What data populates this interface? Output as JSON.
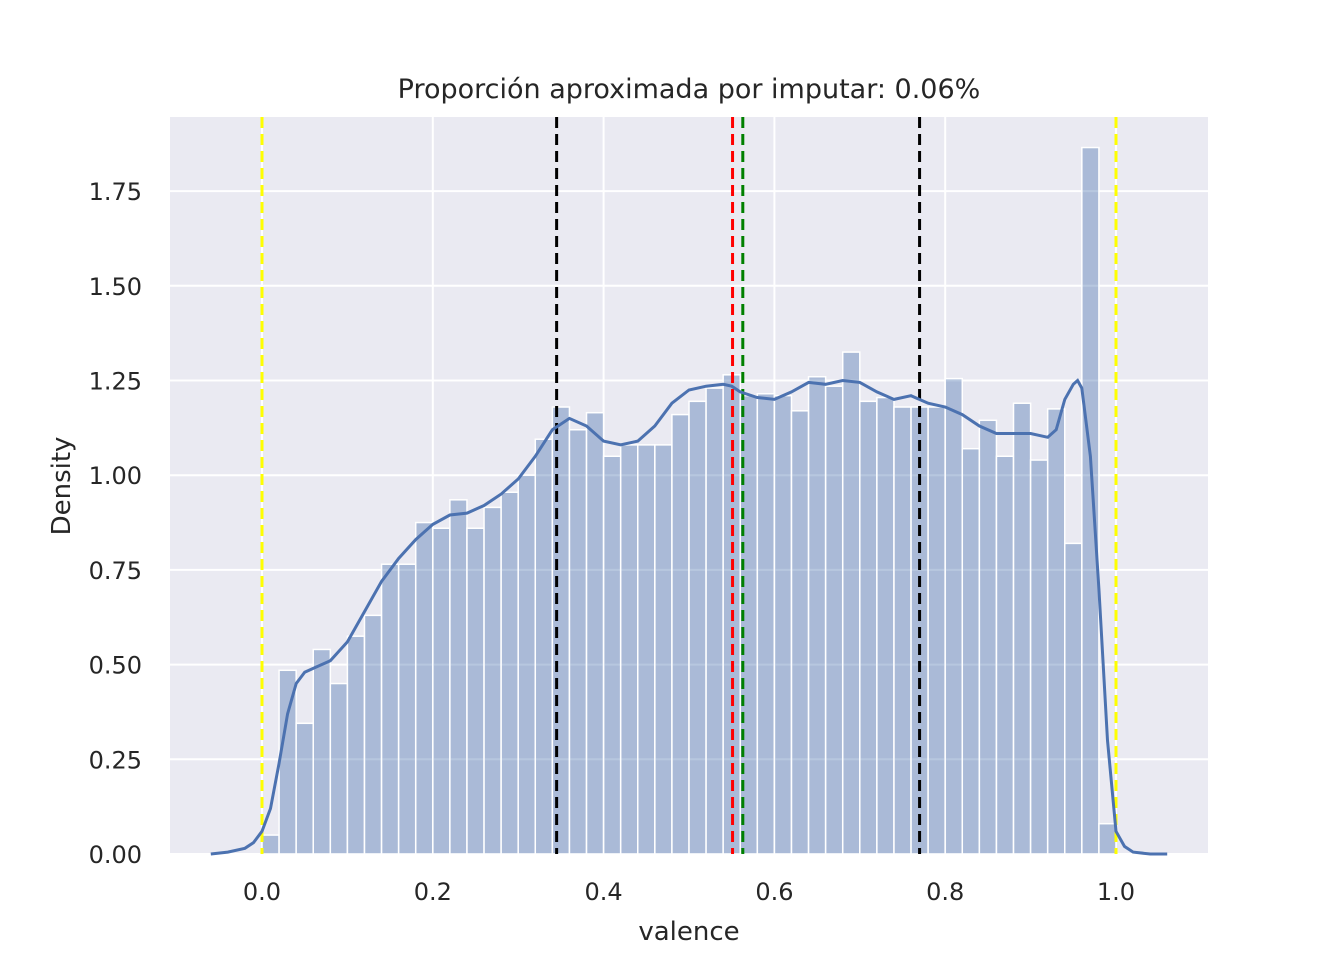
{
  "chart_data": {
    "type": "bar",
    "title": "Proporción aproximada por imputar: 0.06%",
    "xlabel": "valence",
    "ylabel": "Density",
    "xlim": [
      -0.12,
      1.11
    ],
    "ylim": [
      0,
      1.95
    ],
    "xticks": [
      0.0,
      0.2,
      0.4,
      0.6,
      0.8,
      1.0
    ],
    "xtick_labels": [
      "0.0",
      "0.2",
      "0.4",
      "0.6",
      "0.8",
      "1.0"
    ],
    "yticks": [
      0.0,
      0.25,
      0.5,
      0.75,
      1.0,
      1.25,
      1.5,
      1.75
    ],
    "ytick_labels": [
      "0.00",
      "0.25",
      "0.50",
      "0.75",
      "1.00",
      "1.25",
      "1.50",
      "1.75"
    ],
    "grid": true,
    "histogram": {
      "bin_start": 0.0,
      "bin_width": 0.02,
      "color": "#4c72b0",
      "densities": [
        0.05,
        0.485,
        0.345,
        0.54,
        0.45,
        0.575,
        0.63,
        0.765,
        0.765,
        0.875,
        0.86,
        0.935,
        0.86,
        0.915,
        0.955,
        1.0,
        1.095,
        1.18,
        1.12,
        1.165,
        1.05,
        1.08,
        1.08,
        1.08,
        1.16,
        1.195,
        1.23,
        1.265,
        1.21,
        1.215,
        1.21,
        1.17,
        1.26,
        1.235,
        1.325,
        1.195,
        1.205,
        1.18,
        1.18,
        1.18,
        1.255,
        1.07,
        1.145,
        1.05,
        1.19,
        1.04,
        1.175,
        0.82,
        1.865,
        0.08
      ]
    },
    "kde": {
      "color": "#4c72b0",
      "x": [
        -0.06,
        -0.04,
        -0.02,
        -0.01,
        0.0,
        0.01,
        0.02,
        0.03,
        0.04,
        0.05,
        0.06,
        0.08,
        0.1,
        0.12,
        0.14,
        0.16,
        0.18,
        0.2,
        0.22,
        0.24,
        0.26,
        0.28,
        0.3,
        0.32,
        0.34,
        0.36,
        0.38,
        0.4,
        0.42,
        0.44,
        0.46,
        0.48,
        0.5,
        0.52,
        0.54,
        0.55,
        0.56,
        0.58,
        0.6,
        0.62,
        0.64,
        0.66,
        0.68,
        0.7,
        0.72,
        0.74,
        0.76,
        0.78,
        0.8,
        0.82,
        0.84,
        0.86,
        0.88,
        0.9,
        0.92,
        0.93,
        0.94,
        0.95,
        0.955,
        0.96,
        0.97,
        0.98,
        0.99,
        1.0,
        1.01,
        1.02,
        1.04,
        1.06
      ],
      "y": [
        0.0,
        0.005,
        0.015,
        0.03,
        0.06,
        0.12,
        0.24,
        0.37,
        0.45,
        0.48,
        0.49,
        0.51,
        0.56,
        0.64,
        0.72,
        0.78,
        0.83,
        0.87,
        0.895,
        0.9,
        0.92,
        0.95,
        0.99,
        1.05,
        1.12,
        1.15,
        1.13,
        1.09,
        1.08,
        1.09,
        1.13,
        1.19,
        1.225,
        1.235,
        1.24,
        1.235,
        1.22,
        1.205,
        1.2,
        1.22,
        1.245,
        1.24,
        1.25,
        1.245,
        1.22,
        1.2,
        1.21,
        1.19,
        1.18,
        1.16,
        1.13,
        1.11,
        1.11,
        1.11,
        1.1,
        1.12,
        1.2,
        1.24,
        1.25,
        1.23,
        1.05,
        0.7,
        0.3,
        0.06,
        0.02,
        0.005,
        0.0,
        0.0
      ]
    },
    "vlines": [
      {
        "x": 0.0,
        "color": "#ffff00"
      },
      {
        "x": 0.345,
        "color": "#000000"
      },
      {
        "x": 0.551,
        "color": "#ff0000"
      },
      {
        "x": 0.563,
        "color": "#008000"
      },
      {
        "x": 0.77,
        "color": "#000000"
      },
      {
        "x": 1.0,
        "color": "#ffff00"
      }
    ],
    "background_color": "#eaeaf2",
    "grid_color": "#ffffff"
  }
}
